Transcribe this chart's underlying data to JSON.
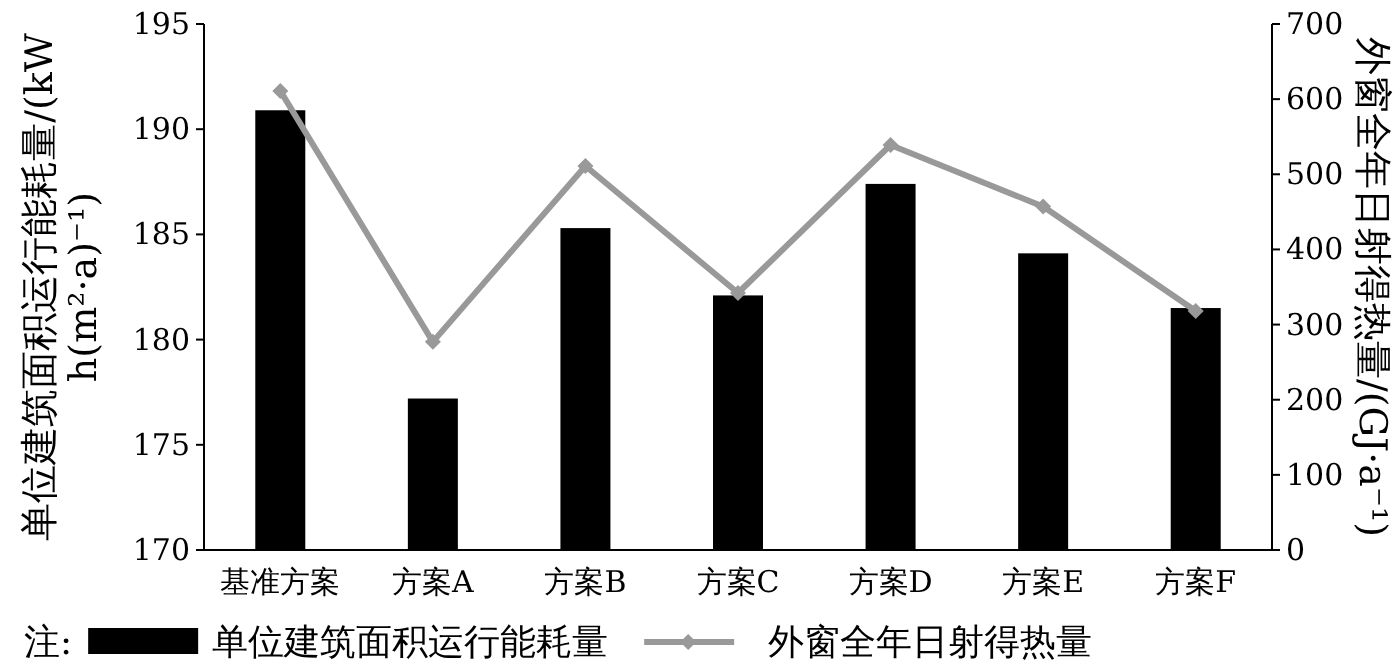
{
  "chart_data": {
    "type": "bar",
    "categories": [
      "基准方案",
      "方案A",
      "方案B",
      "方案C",
      "方案D",
      "方案E",
      "方案F"
    ],
    "series": [
      {
        "name": "单位建筑面积运行能耗量",
        "color": "#000000",
        "values": [
          190.9,
          177.2,
          185.3,
          182.1,
          187.4,
          184.1,
          181.5
        ]
      },
      {
        "name": "外窗全年日射得热量",
        "type": "line",
        "axis": "y2",
        "color": "#999999",
        "marker": "diamond",
        "values": [
          611,
          277,
          511,
          342,
          539,
          457,
          318
        ]
      }
    ],
    "ylabel": "单位建筑面积运行能耗量/(kWh(m²·a)⁻¹)",
    "y2label": "外窗全年日射得热量/(GJ·a⁻¹)",
    "ylim": [
      170,
      195
    ],
    "yticks": [
      170,
      175,
      180,
      185,
      190,
      195
    ],
    "y2lim": [
      0,
      700
    ],
    "y2ticks": [
      0,
      100,
      200,
      300,
      400,
      500,
      600,
      700
    ],
    "legend": "bottom",
    "legend_title": "注:"
  }
}
